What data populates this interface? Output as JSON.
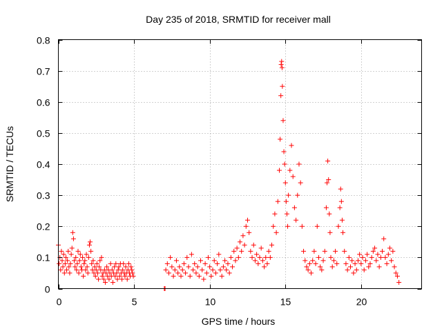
{
  "chart_data": {
    "type": "scatter",
    "title": "Day 235 of 2018, SRMTID for receiver mall",
    "xlabel": "GPS time / hours",
    "ylabel": "SRMTID / TECUs",
    "xlim": [
      0,
      24
    ],
    "ylim": [
      0,
      0.8
    ],
    "xticks": [
      0,
      5,
      10,
      15,
      20
    ],
    "yticks": [
      0,
      0.1,
      0.2,
      0.3,
      0.4,
      0.5,
      0.6,
      0.7,
      0.8
    ],
    "xtick_labels": [
      "0",
      "5",
      "10",
      "15",
      "20"
    ],
    "ytick_labels": [
      "0",
      "0.1",
      "0.2",
      "0.3",
      "0.4",
      "0.5",
      "0.6",
      "0.7",
      "0.8"
    ],
    "grid": true,
    "marker": "+",
    "marker_color": "#ff0000",
    "series": [
      {
        "name": "SRMTID",
        "points": [
          [
            0.0,
            0.14
          ],
          [
            0.05,
            0.08
          ],
          [
            0.1,
            0.1
          ],
          [
            0.15,
            0.06
          ],
          [
            0.2,
            0.12
          ],
          [
            0.25,
            0.09
          ],
          [
            0.3,
            0.07
          ],
          [
            0.35,
            0.11
          ],
          [
            0.4,
            0.05
          ],
          [
            0.45,
            0.08
          ],
          [
            0.5,
            0.1
          ],
          [
            0.55,
            0.06
          ],
          [
            0.6,
            0.09
          ],
          [
            0.65,
            0.12
          ],
          [
            0.7,
            0.07
          ],
          [
            0.75,
            0.05
          ],
          [
            0.8,
            0.08
          ],
          [
            0.85,
            0.11
          ],
          [
            0.9,
            0.13
          ],
          [
            0.95,
            0.18
          ],
          [
            1.0,
            0.16
          ],
          [
            1.05,
            0.09
          ],
          [
            1.1,
            0.07
          ],
          [
            1.15,
            0.1
          ],
          [
            1.2,
            0.06
          ],
          [
            1.25,
            0.08
          ],
          [
            1.3,
            0.12
          ],
          [
            1.35,
            0.05
          ],
          [
            1.4,
            0.09
          ],
          [
            1.45,
            0.11
          ],
          [
            1.5,
            0.07
          ],
          [
            1.55,
            0.06
          ],
          [
            1.6,
            0.1
          ],
          [
            1.65,
            0.04
          ],
          [
            1.7,
            0.08
          ],
          [
            1.75,
            0.09
          ],
          [
            1.8,
            0.06
          ],
          [
            1.85,
            0.11
          ],
          [
            1.9,
            0.07
          ],
          [
            1.95,
            0.05
          ],
          [
            2.0,
            0.1
          ],
          [
            2.05,
            0.14
          ],
          [
            2.1,
            0.15
          ],
          [
            2.15,
            0.12
          ],
          [
            2.2,
            0.08
          ],
          [
            2.25,
            0.06
          ],
          [
            2.3,
            0.09
          ],
          [
            2.35,
            0.05
          ],
          [
            2.4,
            0.07
          ],
          [
            2.45,
            0.04
          ],
          [
            2.5,
            0.06
          ],
          [
            2.55,
            0.08
          ],
          [
            2.6,
            0.05
          ],
          [
            2.65,
            0.03
          ],
          [
            2.7,
            0.07
          ],
          [
            2.75,
            0.09
          ],
          [
            2.8,
            0.06
          ],
          [
            2.85,
            0.1
          ],
          [
            2.9,
            0.04
          ],
          [
            2.95,
            0.05
          ],
          [
            3.0,
            0.03
          ],
          [
            3.05,
            0.06
          ],
          [
            3.1,
            0.02
          ],
          [
            3.15,
            0.05
          ],
          [
            3.2,
            0.07
          ],
          [
            3.25,
            0.04
          ],
          [
            3.3,
            0.06
          ],
          [
            3.35,
            0.03
          ],
          [
            3.4,
            0.05
          ],
          [
            3.45,
            0.08
          ],
          [
            3.5,
            0.04
          ],
          [
            3.55,
            0.06
          ],
          [
            3.6,
            0.02
          ],
          [
            3.65,
            0.05
          ],
          [
            3.7,
            0.07
          ],
          [
            3.75,
            0.04
          ],
          [
            3.8,
            0.08
          ],
          [
            3.85,
            0.05
          ],
          [
            3.9,
            0.03
          ],
          [
            3.95,
            0.06
          ],
          [
            4.0,
            0.07
          ],
          [
            4.05,
            0.04
          ],
          [
            4.1,
            0.08
          ],
          [
            4.15,
            0.05
          ],
          [
            4.2,
            0.03
          ],
          [
            4.25,
            0.06
          ],
          [
            4.3,
            0.08
          ],
          [
            4.35,
            0.05
          ],
          [
            4.4,
            0.04
          ],
          [
            4.45,
            0.07
          ],
          [
            4.5,
            0.05
          ],
          [
            4.55,
            0.03
          ],
          [
            4.6,
            0.06
          ],
          [
            4.65,
            0.08
          ],
          [
            4.7,
            0.05
          ],
          [
            4.75,
            0.04
          ],
          [
            4.8,
            0.07
          ],
          [
            4.85,
            0.06
          ],
          [
            4.9,
            0.05
          ],
          [
            4.95,
            0.04
          ],
          [
            7.0,
            0.0
          ],
          [
            7.05,
            0.0
          ],
          [
            7.1,
            0.06
          ],
          [
            7.2,
            0.08
          ],
          [
            7.3,
            0.05
          ],
          [
            7.4,
            0.1
          ],
          [
            7.5,
            0.07
          ],
          [
            7.6,
            0.04
          ],
          [
            7.7,
            0.06
          ],
          [
            7.8,
            0.09
          ],
          [
            7.9,
            0.05
          ],
          [
            8.0,
            0.07
          ],
          [
            8.1,
            0.04
          ],
          [
            8.2,
            0.06
          ],
          [
            8.3,
            0.08
          ],
          [
            8.4,
            0.05
          ],
          [
            8.5,
            0.1
          ],
          [
            8.6,
            0.07
          ],
          [
            8.7,
            0.04
          ],
          [
            8.8,
            0.11
          ],
          [
            8.9,
            0.06
          ],
          [
            9.0,
            0.08
          ],
          [
            9.1,
            0.05
          ],
          [
            9.2,
            0.07
          ],
          [
            9.3,
            0.04
          ],
          [
            9.4,
            0.09
          ],
          [
            9.5,
            0.06
          ],
          [
            9.6,
            0.03
          ],
          [
            9.7,
            0.08
          ],
          [
            9.8,
            0.05
          ],
          [
            9.9,
            0.1
          ],
          [
            10.0,
            0.07
          ],
          [
            10.1,
            0.04
          ],
          [
            10.2,
            0.06
          ],
          [
            10.3,
            0.09
          ],
          [
            10.4,
            0.05
          ],
          [
            10.5,
            0.08
          ],
          [
            10.6,
            0.11
          ],
          [
            10.7,
            0.06
          ],
          [
            10.8,
            0.04
          ],
          [
            10.9,
            0.07
          ],
          [
            11.0,
            0.09
          ],
          [
            11.1,
            0.06
          ],
          [
            11.2,
            0.08
          ],
          [
            11.3,
            0.05
          ],
          [
            11.4,
            0.1
          ],
          [
            11.5,
            0.07
          ],
          [
            11.6,
            0.12
          ],
          [
            11.7,
            0.09
          ],
          [
            11.8,
            0.13
          ],
          [
            11.9,
            0.1
          ],
          [
            12.0,
            0.15
          ],
          [
            12.1,
            0.12
          ],
          [
            12.2,
            0.17
          ],
          [
            12.3,
            0.14
          ],
          [
            12.4,
            0.2
          ],
          [
            12.5,
            0.22
          ],
          [
            12.6,
            0.18
          ],
          [
            12.7,
            0.12
          ],
          [
            12.8,
            0.1
          ],
          [
            12.9,
            0.14
          ],
          [
            13.0,
            0.09
          ],
          [
            13.1,
            0.11
          ],
          [
            13.2,
            0.08
          ],
          [
            13.3,
            0.1
          ],
          [
            13.4,
            0.13
          ],
          [
            13.5,
            0.09
          ],
          [
            13.6,
            0.07
          ],
          [
            13.7,
            0.1
          ],
          [
            13.8,
            0.08
          ],
          [
            13.9,
            0.12
          ],
          [
            14.0,
            0.1
          ],
          [
            14.1,
            0.14
          ],
          [
            14.2,
            0.2
          ],
          [
            14.3,
            0.24
          ],
          [
            14.4,
            0.18
          ],
          [
            14.5,
            0.28
          ],
          [
            14.6,
            0.38
          ],
          [
            14.65,
            0.48
          ],
          [
            14.7,
            0.62
          ],
          [
            14.72,
            0.72
          ],
          [
            14.75,
            0.73
          ],
          [
            14.78,
            0.71
          ],
          [
            14.8,
            0.65
          ],
          [
            14.85,
            0.54
          ],
          [
            14.9,
            0.44
          ],
          [
            14.95,
            0.4
          ],
          [
            15.0,
            0.34
          ],
          [
            15.05,
            0.28
          ],
          [
            15.1,
            0.24
          ],
          [
            15.15,
            0.2
          ],
          [
            15.2,
            0.3
          ],
          [
            15.3,
            0.38
          ],
          [
            15.4,
            0.46
          ],
          [
            15.5,
            0.36
          ],
          [
            15.6,
            0.26
          ],
          [
            15.7,
            0.22
          ],
          [
            15.8,
            0.3
          ],
          [
            15.9,
            0.4
          ],
          [
            16.0,
            0.34
          ],
          [
            16.1,
            0.2
          ],
          [
            16.2,
            0.12
          ],
          [
            16.3,
            0.09
          ],
          [
            16.4,
            0.07
          ],
          [
            16.5,
            0.06
          ],
          [
            16.6,
            0.08
          ],
          [
            16.7,
            0.05
          ],
          [
            16.8,
            0.09
          ],
          [
            16.9,
            0.12
          ],
          [
            17.0,
            0.08
          ],
          [
            17.1,
            0.2
          ],
          [
            17.2,
            0.1
          ],
          [
            17.3,
            0.07
          ],
          [
            17.4,
            0.06
          ],
          [
            17.5,
            0.09
          ],
          [
            17.6,
            0.12
          ],
          [
            17.7,
            0.26
          ],
          [
            17.75,
            0.34
          ],
          [
            17.8,
            0.41
          ],
          [
            17.85,
            0.35
          ],
          [
            17.9,
            0.24
          ],
          [
            17.95,
            0.18
          ],
          [
            18.0,
            0.1
          ],
          [
            18.1,
            0.07
          ],
          [
            18.2,
            0.09
          ],
          [
            18.3,
            0.12
          ],
          [
            18.4,
            0.08
          ],
          [
            18.5,
            0.2
          ],
          [
            18.6,
            0.26
          ],
          [
            18.65,
            0.32
          ],
          [
            18.7,
            0.28
          ],
          [
            18.75,
            0.22
          ],
          [
            18.8,
            0.18
          ],
          [
            18.9,
            0.12
          ],
          [
            19.0,
            0.08
          ],
          [
            19.1,
            0.06
          ],
          [
            19.2,
            0.1
          ],
          [
            19.3,
            0.07
          ],
          [
            19.4,
            0.09
          ],
          [
            19.5,
            0.05
          ],
          [
            19.6,
            0.08
          ],
          [
            19.7,
            0.06
          ],
          [
            19.8,
            0.09
          ],
          [
            19.9,
            0.11
          ],
          [
            20.0,
            0.08
          ],
          [
            20.1,
            0.1
          ],
          [
            20.2,
            0.06
          ],
          [
            20.3,
            0.09
          ],
          [
            20.4,
            0.11
          ],
          [
            20.5,
            0.07
          ],
          [
            20.6,
            0.08
          ],
          [
            20.7,
            0.1
          ],
          [
            20.8,
            0.12
          ],
          [
            20.9,
            0.13
          ],
          [
            21.0,
            0.09
          ],
          [
            21.1,
            0.11
          ],
          [
            21.2,
            0.07
          ],
          [
            21.3,
            0.1
          ],
          [
            21.4,
            0.12
          ],
          [
            21.5,
            0.16
          ],
          [
            21.6,
            0.1
          ],
          [
            21.7,
            0.08
          ],
          [
            21.8,
            0.11
          ],
          [
            21.9,
            0.13
          ],
          [
            22.0,
            0.09
          ],
          [
            22.1,
            0.12
          ],
          [
            22.2,
            0.07
          ],
          [
            22.3,
            0.05
          ],
          [
            22.4,
            0.04
          ],
          [
            22.5,
            0.02
          ]
        ]
      }
    ]
  }
}
